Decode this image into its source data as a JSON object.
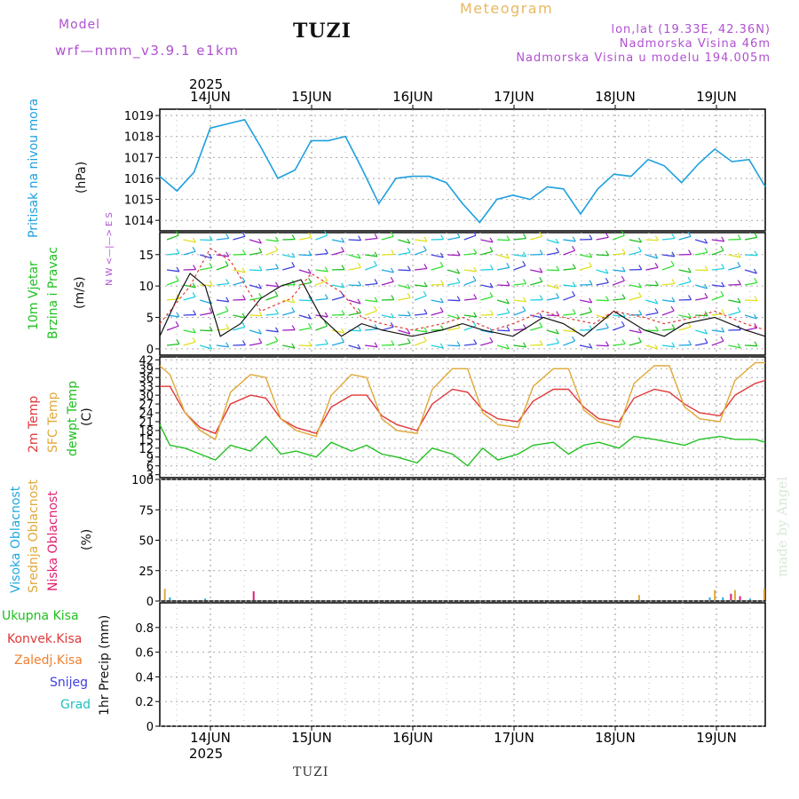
{
  "header": {
    "model_label": "Model",
    "model_name": "wrf—nmm_v3.9.1  e1km",
    "station": "TUZI",
    "product": "Meteogram",
    "lonlat": "lon,lat (19.33E, 42.36N)",
    "elevation": "Nadmorska Visina 46m",
    "model_elevation": "Nadmorska Visina u modelu 194.005m"
  },
  "footer": {
    "station": "TUZI",
    "credit": "made by Angel"
  },
  "colors": {
    "pressure": "#1ea0e0",
    "t2m": "#e03838",
    "sfc": "#e0a838",
    "dew": "#20c020",
    "high_cloud": "#20a8e0",
    "mid_cloud": "#e0a838",
    "low_cloud": "#e02070",
    "wind_label_purple": "#b050d0"
  },
  "chart_data": [
    {
      "type": "line",
      "panel": "pressure",
      "ylabel_lines": [
        "Pritisak na nivou mora",
        "(hPa)"
      ],
      "ylim": [
        1013.5,
        1019.3
      ],
      "yticks": [
        "1014",
        "1015",
        "1016",
        "1017",
        "1018",
        "1019"
      ],
      "ytick_values": [
        1014,
        1015,
        1016,
        1017,
        1018,
        1019
      ],
      "x_days": [
        0,
        0.17,
        0.34,
        0.5,
        0.67,
        0.84,
        1.0,
        1.17,
        1.34,
        1.5,
        1.67,
        1.84,
        2.0,
        2.17,
        2.34,
        2.5,
        2.67,
        2.84,
        3.0,
        3.17,
        3.34,
        3.5,
        3.67,
        3.84,
        4.0,
        4.17,
        4.34,
        4.5,
        4.67,
        4.84,
        5.0,
        5.17,
        5.34,
        5.5,
        5.67,
        5.84,
        6.0
      ],
      "values": [
        1016.1,
        1015.4,
        1016.3,
        1018.4,
        1018.6,
        1018.8,
        1017.5,
        1016.0,
        1016.4,
        1017.8,
        1017.8,
        1018.0,
        1016.5,
        1014.8,
        1016.0,
        1016.1,
        1016.1,
        1015.8,
        1014.8,
        1013.9,
        1015.0,
        1015.2,
        1015.0,
        1015.6,
        1015.5,
        1014.3,
        1015.5,
        1016.2,
        1016.1,
        1016.9,
        1016.6,
        1015.8,
        1016.7,
        1017.4,
        1016.8,
        1016.9,
        1015.6
      ]
    },
    {
      "type": "line",
      "panel": "wind",
      "ylabel_lines": [
        "10m Vjetar",
        "Brzina i Pravac",
        "(m/s)"
      ],
      "ylim": [
        -1,
        18.5
      ],
      "yticks": [
        "0",
        "5",
        "10",
        "15"
      ],
      "ytick_values": [
        0,
        5,
        10,
        15
      ],
      "compass": "N W <—|—> E S",
      "series": [
        {
          "values_x": [
            0,
            0.2,
            0.3,
            0.45,
            0.6,
            0.8,
            1.0,
            1.2,
            1.4,
            1.6,
            1.8,
            2.0,
            2.2,
            2.5,
            2.8,
            3.0,
            3.2,
            3.5,
            3.8,
            4.0,
            4.2,
            4.5,
            4.8,
            5.0,
            5.2,
            5.5,
            5.8,
            6.0
          ],
          "values": [
            2,
            9,
            12,
            10,
            2,
            4,
            8,
            10,
            11,
            5,
            2,
            4,
            3,
            2,
            3,
            4,
            3,
            2,
            5,
            4,
            2,
            6,
            3,
            2,
            4,
            5,
            3,
            2
          ]
        },
        {
          "values_x": [
            0,
            0.3,
            0.5,
            0.7,
            1.0,
            1.3,
            1.5,
            1.8,
            2.0,
            2.2,
            2.5,
            2.8,
            3.0,
            3.3,
            3.5,
            3.8,
            4.0,
            4.3,
            4.5,
            4.8,
            5.0,
            5.3,
            5.5,
            5.8,
            6.0
          ],
          "values": [
            4,
            10,
            16,
            14,
            6,
            8,
            12,
            9,
            5,
            4,
            3,
            4,
            5,
            3,
            4,
            6,
            5,
            4,
            6,
            5,
            4,
            5,
            6,
            4,
            3
          ]
        }
      ]
    },
    {
      "type": "line",
      "panel": "temperature",
      "ylabel_lines": [
        "2m Temp",
        "SFC Temp",
        "dewpt Temp",
        "(C)"
      ],
      "ylim": [
        2,
        43
      ],
      "yticks": [
        "3",
        "6",
        "9",
        "12",
        "15",
        "18",
        "21",
        "24",
        "27",
        "30",
        "33",
        "36",
        "39",
        "42"
      ],
      "ytick_values": [
        3,
        6,
        9,
        12,
        15,
        18,
        21,
        24,
        27,
        30,
        33,
        36,
        39,
        42
      ],
      "x_days": [
        0,
        0.1,
        0.25,
        0.4,
        0.55,
        0.7,
        0.9,
        1.05,
        1.2,
        1.35,
        1.55,
        1.7,
        1.9,
        2.05,
        2.2,
        2.35,
        2.55,
        2.7,
        2.9,
        3.05,
        3.2,
        3.35,
        3.55,
        3.7,
        3.9,
        4.05,
        4.2,
        4.35,
        4.55,
        4.7,
        4.9,
        5.05,
        5.2,
        5.35,
        5.55,
        5.7,
        5.9,
        6.0
      ],
      "series": [
        {
          "name": "2m Temp",
          "values": [
            33,
            33,
            24,
            19,
            17,
            27,
            30,
            29,
            22,
            19,
            17,
            26,
            30,
            30,
            23,
            20,
            18,
            27,
            32,
            31,
            25,
            22,
            21,
            28,
            32,
            32,
            26,
            22,
            21,
            29,
            32,
            31,
            27,
            24,
            23,
            30,
            34,
            35
          ]
        },
        {
          "name": "SFC Temp",
          "values": [
            40,
            37,
            24,
            18,
            15,
            31,
            37,
            36,
            22,
            18,
            16,
            30,
            37,
            36,
            22,
            18,
            17,
            32,
            39,
            39,
            24,
            20,
            19,
            33,
            39,
            39,
            25,
            21,
            19,
            34,
            40,
            40,
            26,
            22,
            21,
            35,
            41,
            41
          ]
        },
        {
          "name": "dewpt Temp",
          "values": [
            20,
            13,
            12,
            10,
            8,
            13,
            11,
            16,
            10,
            11,
            9,
            14,
            11,
            13,
            10,
            9,
            7,
            12,
            10,
            6,
            12,
            8,
            10,
            13,
            14,
            10,
            13,
            14,
            12,
            16,
            15,
            14,
            13,
            15,
            16,
            15,
            15,
            14
          ]
        }
      ]
    },
    {
      "type": "bar",
      "panel": "clouds",
      "ylabel_lines": [
        "Visoka Oblacnost",
        "Srednja Oblacnost",
        "Niska Oblacnost",
        "(%)"
      ],
      "ylim": [
        0,
        100
      ],
      "yticks": [
        "0",
        "25",
        "50",
        "75",
        "100"
      ],
      "ytick_values": [
        0,
        25,
        50,
        75,
        100
      ],
      "bars": [
        {
          "x": 0.05,
          "value": 10,
          "type": "mid"
        },
        {
          "x": 0.1,
          "value": 3,
          "type": "high"
        },
        {
          "x": 0.45,
          "value": 2,
          "type": "high"
        },
        {
          "x": 0.93,
          "value": 8,
          "type": "low"
        },
        {
          "x": 4.75,
          "value": 5,
          "type": "mid"
        },
        {
          "x": 5.45,
          "value": 3,
          "type": "high"
        },
        {
          "x": 5.5,
          "value": 9,
          "type": "mid"
        },
        {
          "x": 5.58,
          "value": 3,
          "type": "high"
        },
        {
          "x": 5.66,
          "value": 6,
          "type": "low"
        },
        {
          "x": 5.7,
          "value": 9,
          "type": "mid"
        },
        {
          "x": 5.75,
          "value": 4,
          "type": "low"
        },
        {
          "x": 5.85,
          "value": 2,
          "type": "high"
        },
        {
          "x": 5.99,
          "value": 10,
          "type": "mid"
        }
      ]
    },
    {
      "type": "bar",
      "panel": "precip",
      "ylabel_lines": [
        "1hr Precip (mm)"
      ],
      "legend": [
        "Ukupna Kisa",
        "Konvek.Kisa",
        "Zaledj.Kisa",
        "Snijeg",
        "Grad"
      ],
      "legend_colors": [
        "#20c020",
        "#e03838",
        "#f08030",
        "#4040e0",
        "#20c0c0"
      ],
      "ylim": [
        0,
        1.0
      ],
      "yticks": [
        "0",
        "0.2",
        "0.4",
        "0.6",
        "0.8"
      ],
      "ytick_values": [
        0,
        0.2,
        0.4,
        0.6,
        0.8
      ],
      "values": []
    }
  ],
  "time_axis": {
    "year": "2025",
    "days": [
      "14JUN",
      "15JUN",
      "16JUN",
      "17JUN",
      "18JUN",
      "19JUN"
    ]
  }
}
